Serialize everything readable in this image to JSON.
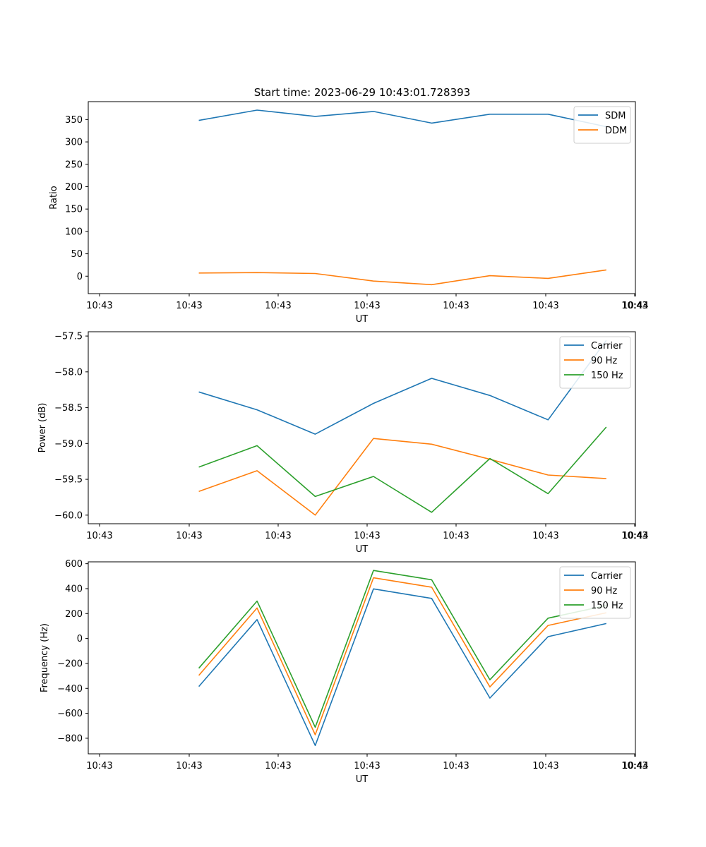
{
  "figure": {
    "title": "Start time: 2023-06-29 10:43:01.728393"
  },
  "chart_data": [
    {
      "type": "line",
      "title": "Start time: 2023-06-29 10:43:01.728393",
      "xlabel": "UT",
      "ylabel": "Ratio",
      "x_tick_labels": [
        "10:43",
        "10:43",
        "10:43",
        "10:43",
        "10:43",
        "10:43",
        "10:43",
        "10:44"
      ],
      "x": [
        1,
        2,
        3,
        4,
        5,
        6,
        7,
        8
      ],
      "xlim": [
        -0.9,
        8.5
      ],
      "ylim": [
        -39,
        390
      ],
      "yticks": [
        0,
        50,
        100,
        150,
        200,
        250,
        300,
        350
      ],
      "legend": "top-right",
      "series": [
        {
          "name": "SDM",
          "color": "#1f77b4",
          "values": [
            348,
            371,
            357,
            368,
            342,
            362,
            362,
            334
          ]
        },
        {
          "name": "DDM",
          "color": "#ff7f0e",
          "values": [
            7,
            8,
            6,
            -11,
            -19,
            1,
            -5,
            14
          ]
        }
      ]
    },
    {
      "type": "line",
      "xlabel": "UT",
      "ylabel": "Power (dB)",
      "x_tick_labels": [
        "10:43",
        "10:43",
        "10:43",
        "10:43",
        "10:43",
        "10:43",
        "10:43",
        "10:44"
      ],
      "x": [
        1,
        2,
        3,
        4,
        5,
        6,
        7,
        8
      ],
      "xlim": [
        -0.9,
        8.5
      ],
      "ylim": [
        -60.12,
        -57.44
      ],
      "yticks": [
        -60.0,
        -59.5,
        -59.0,
        -58.5,
        -58.0,
        -57.5
      ],
      "ytick_labels": [
        "−60.0",
        "−59.5",
        "−59.0",
        "−58.5",
        "−58.0",
        "−57.5"
      ],
      "legend": "top-right",
      "series": [
        {
          "name": "Carrier",
          "color": "#1f77b4",
          "values": [
            -58.28,
            -58.53,
            -58.87,
            -58.44,
            -58.09,
            -58.33,
            -58.67,
            -57.56
          ]
        },
        {
          "name": "90 Hz",
          "color": "#ff7f0e",
          "values": [
            -59.67,
            -59.38,
            -60.0,
            -58.93,
            -59.01,
            -59.22,
            -59.44,
            -59.49
          ]
        },
        {
          "name": "150 Hz",
          "color": "#2ca02c",
          "values": [
            -59.33,
            -59.03,
            -59.74,
            -59.46,
            -59.96,
            -59.21,
            -59.7,
            -58.77
          ]
        }
      ]
    },
    {
      "type": "line",
      "xlabel": "UT",
      "ylabel": "Frequency (Hz)",
      "x_tick_labels": [
        "10:43",
        "10:43",
        "10:43",
        "10:43",
        "10:43",
        "10:43",
        "10:43",
        "10:44"
      ],
      "x": [
        1,
        2,
        3,
        4,
        5,
        6,
        7,
        8
      ],
      "xlim": [
        -0.9,
        8.5
      ],
      "ylim": [
        -925,
        615
      ],
      "yticks": [
        -800,
        -600,
        -400,
        -200,
        0,
        200,
        400,
        600
      ],
      "ytick_labels": [
        "−800",
        "−600",
        "−400",
        "−200",
        "0",
        "200",
        "400",
        "600"
      ],
      "legend": "top-right",
      "series": [
        {
          "name": "Carrier",
          "color": "#1f77b4",
          "values": [
            -385,
            152,
            -858,
            398,
            322,
            -478,
            15,
            120
          ]
        },
        {
          "name": "90 Hz",
          "color": "#ff7f0e",
          "values": [
            -296,
            245,
            -772,
            487,
            412,
            -388,
            105,
            207
          ]
        },
        {
          "name": "150 Hz",
          "color": "#2ca02c",
          "values": [
            -238,
            300,
            -712,
            546,
            471,
            -331,
            163,
            265
          ]
        }
      ]
    }
  ]
}
